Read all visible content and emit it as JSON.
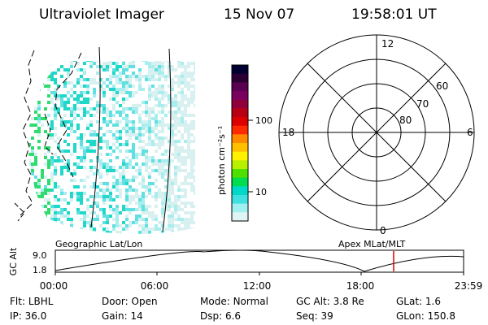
{
  "header": {
    "title": "Ultraviolet Imager",
    "date": "15 Nov 07",
    "time": "19:58:01 UT"
  },
  "colorbar": {
    "label": "photon cm⁻²s⁻¹",
    "ticks": [
      "100",
      "10"
    ],
    "colors": [
      "#000030",
      "#2a0033",
      "#5a0050",
      "#7a0060",
      "#90003a",
      "#b80015",
      "#dd0000",
      "#ff2a00",
      "#ff8a00",
      "#ffc000",
      "#fff200",
      "#b8f000",
      "#50e000",
      "#00dc50",
      "#00d8c8",
      "#40e0e0",
      "#a0f0f0",
      "#e0f4f4"
    ]
  },
  "polar": {
    "mlt_labels": {
      "top": "12",
      "left": "18",
      "right": "6",
      "bottom": "0"
    },
    "lat_labels": [
      "60",
      "70",
      "80"
    ]
  },
  "timeline": {
    "left_label": "Geographic Lat/Lon",
    "right_label": "Apex MLat/MLT",
    "y_axis_title": "GC Alt",
    "y_ticks": [
      "9.0",
      "1.8"
    ],
    "x_ticks": [
      "00:00",
      "06:00",
      "12:00",
      "18:00",
      "23:59"
    ],
    "marker_color": "#dd0000",
    "marker_time_hours": 19.97
  },
  "info": {
    "row1": [
      {
        "label": "Flt:",
        "value": "LBHL"
      },
      {
        "label": "Door:",
        "value": "Open"
      },
      {
        "label": "Mode:",
        "value": "Normal"
      },
      {
        "label": "GC Alt:",
        "value": "3.8 Re"
      },
      {
        "label": "GLat:",
        "value": "1.6"
      }
    ],
    "row2": [
      {
        "label": "IP:",
        "value": "36.0"
      },
      {
        "label": "Gain:",
        "value": "14"
      },
      {
        "label": "Dsp:",
        "value": "6.6"
      },
      {
        "label": "Seq:",
        "value": "39"
      },
      {
        "label": "GLon:",
        "value": "150.8"
      }
    ]
  }
}
